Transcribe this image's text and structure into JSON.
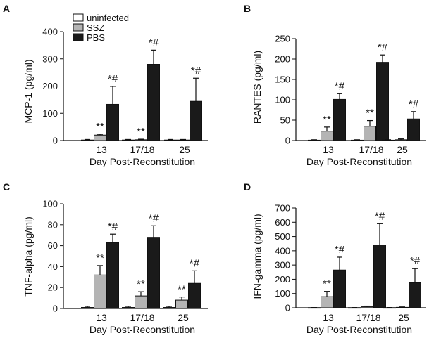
{
  "legend": {
    "items": [
      {
        "label": "uninfected",
        "color": "#ffffff"
      },
      {
        "label": "SSZ",
        "color": "#b4b4b4"
      },
      {
        "label": "PBS",
        "color": "#1a1a1a"
      }
    ]
  },
  "chart_data": [
    {
      "type": "bar",
      "panel": "A",
      "title": "",
      "ylabel": "MCP-1 (pg/ml)",
      "xlabel": "Day Post-Reconstitution",
      "categories": [
        "13",
        "17/18",
        "25"
      ],
      "ylim": [
        0,
        400
      ],
      "yticks": [
        0,
        100,
        200,
        300,
        400
      ],
      "series": [
        {
          "name": "uninfected",
          "values": [
            2,
            2,
            2
          ],
          "errors": [
            2,
            2,
            2
          ]
        },
        {
          "name": "SSZ",
          "values": [
            20,
            3,
            2
          ],
          "errors": [
            3,
            2,
            2
          ]
        },
        {
          "name": "PBS",
          "values": [
            133,
            280,
            144
          ],
          "errors": [
            66,
            52,
            85
          ]
        }
      ],
      "annotations": [
        {
          "category": "13",
          "series": "SSZ",
          "text": "**"
        },
        {
          "category": "13",
          "series": "PBS",
          "text": "*#"
        },
        {
          "category": "17/18",
          "series": "SSZ",
          "text": "**"
        },
        {
          "category": "17/18",
          "series": "PBS",
          "text": "*#"
        },
        {
          "category": "25",
          "series": "PBS",
          "text": "*#"
        }
      ]
    },
    {
      "type": "bar",
      "panel": "B",
      "title": "",
      "ylabel": "RANTES (pg/ml)",
      "xlabel": "Day Post-Reconstitution",
      "categories": [
        "13",
        "17/18",
        "25"
      ],
      "ylim": [
        0,
        250
      ],
      "yticks": [
        0,
        50,
        100,
        150,
        200,
        250
      ],
      "series": [
        {
          "name": "uninfected",
          "values": [
            1,
            1,
            1
          ],
          "errors": [
            1,
            1,
            1
          ]
        },
        {
          "name": "SSZ",
          "values": [
            23,
            35,
            2
          ],
          "errors": [
            10,
            14,
            2
          ]
        },
        {
          "name": "PBS",
          "values": [
            101,
            192,
            53
          ],
          "errors": [
            14,
            18,
            18
          ]
        }
      ],
      "annotations": [
        {
          "category": "13",
          "series": "SSZ",
          "text": "**"
        },
        {
          "category": "13",
          "series": "PBS",
          "text": "*#"
        },
        {
          "category": "17/18",
          "series": "SSZ",
          "text": "**"
        },
        {
          "category": "17/18",
          "series": "PBS",
          "text": "*#"
        },
        {
          "category": "25",
          "series": "PBS",
          "text": "*#"
        }
      ]
    },
    {
      "type": "bar",
      "panel": "C",
      "title": "",
      "ylabel": "TNF-alpha (pg/ml)",
      "xlabel": "Day Post-Reconstitution",
      "categories": [
        "13",
        "17/18",
        "25"
      ],
      "ylim": [
        0,
        100
      ],
      "yticks": [
        0,
        20,
        40,
        60,
        80,
        100
      ],
      "series": [
        {
          "name": "uninfected",
          "values": [
            1,
            1,
            1
          ],
          "errors": [
            1,
            1,
            1
          ]
        },
        {
          "name": "SSZ",
          "values": [
            32,
            12,
            8
          ],
          "errors": [
            9,
            4,
            3
          ]
        },
        {
          "name": "PBS",
          "values": [
            63,
            68,
            24
          ],
          "errors": [
            8,
            11,
            12
          ]
        }
      ],
      "annotations": [
        {
          "category": "13",
          "series": "SSZ",
          "text": "**"
        },
        {
          "category": "13",
          "series": "PBS",
          "text": "*#"
        },
        {
          "category": "17/18",
          "series": "SSZ",
          "text": "**"
        },
        {
          "category": "17/18",
          "series": "PBS",
          "text": "*#"
        },
        {
          "category": "25",
          "series": "SSZ",
          "text": "**"
        },
        {
          "category": "25",
          "series": "PBS",
          "text": "*#"
        }
      ]
    },
    {
      "type": "bar",
      "panel": "D",
      "title": "",
      "ylabel": "IFN-gamma (pg/ml)",
      "xlabel": "Day Post-Reconstitution",
      "categories": [
        "13",
        "17/18",
        "25"
      ],
      "ylim": [
        0,
        700
      ],
      "yticks": [
        0,
        100,
        200,
        300,
        400,
        500,
        600,
        700
      ],
      "series": [
        {
          "name": "uninfected",
          "values": [
            1,
            1,
            1
          ],
          "errors": [
            1,
            1,
            1
          ]
        },
        {
          "name": "SSZ",
          "values": [
            78,
            7,
            3
          ],
          "errors": [
            37,
            5,
            3
          ]
        },
        {
          "name": "PBS",
          "values": [
            265,
            440,
            175
          ],
          "errors": [
            90,
            150,
            100
          ]
        }
      ],
      "annotations": [
        {
          "category": "13",
          "series": "SSZ",
          "text": "**"
        },
        {
          "category": "13",
          "series": "PBS",
          "text": "*#"
        },
        {
          "category": "17/18",
          "series": "PBS",
          "text": "*#"
        },
        {
          "category": "25",
          "series": "PBS",
          "text": "*#"
        }
      ]
    }
  ]
}
